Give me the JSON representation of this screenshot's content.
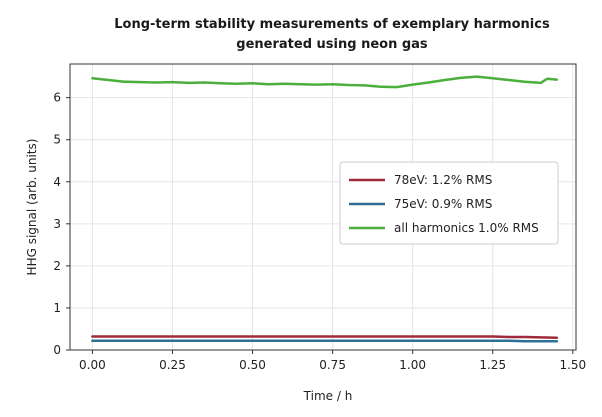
{
  "chart_data": {
    "type": "line",
    "title_lines": [
      "Long-term stability measurements of exemplary harmonics",
      "generated using neon gas"
    ],
    "xlabel": "Time / h",
    "ylabel": "HHG signal (arb. units)",
    "xlim": [
      -0.07,
      1.51
    ],
    "ylim": [
      0,
      6.8
    ],
    "xticks": [
      0.0,
      0.25,
      0.5,
      0.75,
      1.0,
      1.25,
      1.5
    ],
    "xtick_labels": [
      "0.00",
      "0.25",
      "0.50",
      "0.75",
      "1.00",
      "1.25",
      "1.50"
    ],
    "yticks": [
      0,
      1,
      2,
      3,
      4,
      5,
      6
    ],
    "ytick_labels": [
      "0",
      "1",
      "2",
      "3",
      "4",
      "5",
      "6"
    ],
    "grid": true,
    "legend_position": "center-right",
    "series": [
      {
        "name": "78eV: 1.2% RMS",
        "color": "#9e2a3c",
        "x": [
          0.0,
          0.25,
          0.5,
          0.75,
          1.0,
          1.25,
          1.3,
          1.35,
          1.4,
          1.45
        ],
        "y": [
          0.32,
          0.32,
          0.32,
          0.32,
          0.32,
          0.32,
          0.31,
          0.31,
          0.3,
          0.29
        ]
      },
      {
        "name": "75eV: 0.9% RMS",
        "color": "#2f6e95",
        "x": [
          0.0,
          0.25,
          0.5,
          0.75,
          1.0,
          1.25,
          1.3,
          1.35,
          1.4,
          1.45
        ],
        "y": [
          0.22,
          0.22,
          0.22,
          0.22,
          0.22,
          0.22,
          0.22,
          0.21,
          0.21,
          0.21
        ]
      },
      {
        "name": "all harmonics 1.0% RMS",
        "color": "#4caf3d",
        "x": [
          0.0,
          0.05,
          0.1,
          0.15,
          0.2,
          0.25,
          0.3,
          0.35,
          0.4,
          0.45,
          0.5,
          0.55,
          0.6,
          0.65,
          0.7,
          0.75,
          0.8,
          0.85,
          0.9,
          0.95,
          1.0,
          1.05,
          1.1,
          1.15,
          1.2,
          1.25,
          1.3,
          1.35,
          1.4,
          1.42,
          1.45
        ],
        "y": [
          6.46,
          6.42,
          6.38,
          6.37,
          6.36,
          6.37,
          6.35,
          6.36,
          6.34,
          6.33,
          6.34,
          6.32,
          6.33,
          6.32,
          6.31,
          6.32,
          6.3,
          6.29,
          6.26,
          6.25,
          6.31,
          6.36,
          6.42,
          6.47,
          6.5,
          6.46,
          6.42,
          6.38,
          6.35,
          6.45,
          6.43
        ]
      }
    ]
  }
}
